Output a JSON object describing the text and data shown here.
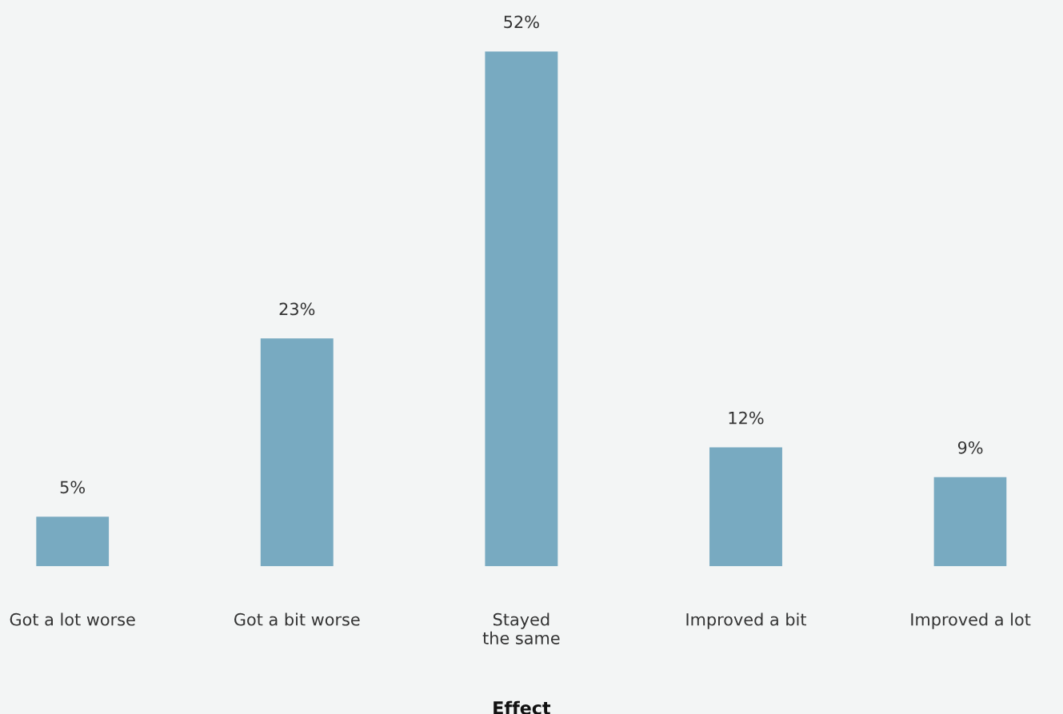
{
  "chart_data": {
    "type": "bar",
    "xlabel": "Effect",
    "categories": [
      "Got a lot worse",
      "Got a bit worse",
      "Stayed\nthe same",
      "Improved a bit",
      "Improved a lot"
    ],
    "values": [
      5,
      23,
      52,
      12,
      9
    ],
    "value_labels": [
      "5%",
      "23%",
      "52%",
      "12%",
      "9%"
    ],
    "color": "#78aac1",
    "grid": false,
    "legend": false,
    "tick_labels": "x"
  }
}
